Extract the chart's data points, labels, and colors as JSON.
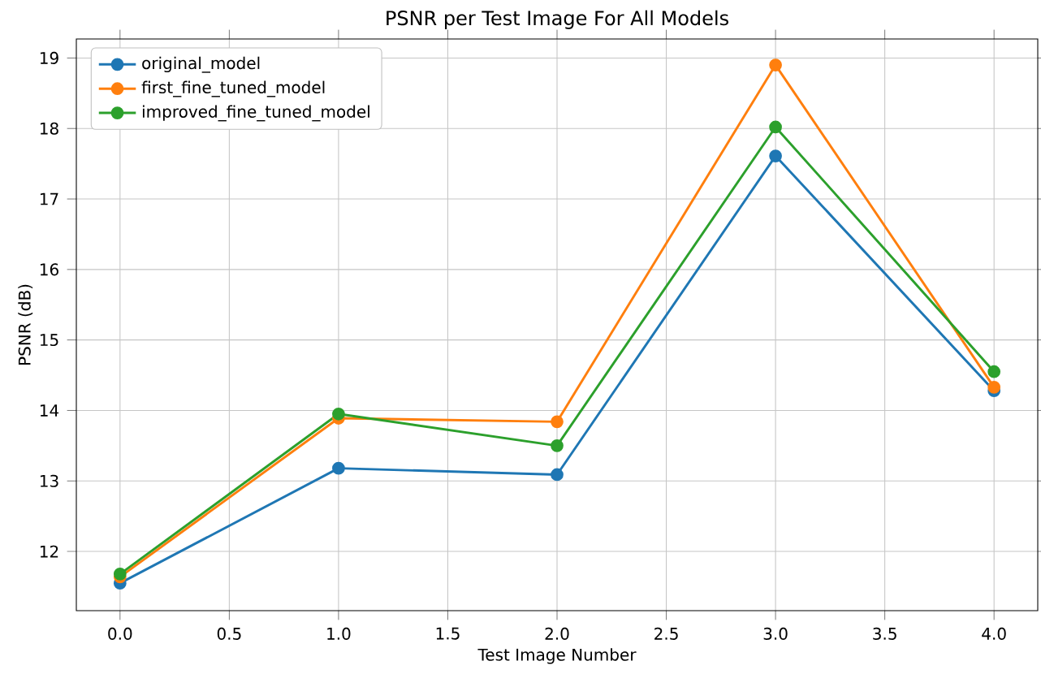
{
  "chart_data": {
    "type": "line",
    "title": "PSNR per Test Image For All Models",
    "xlabel": "Test Image Number",
    "ylabel": "PSNR (dB)",
    "x": [
      0,
      1,
      2,
      3,
      4
    ],
    "series": [
      {
        "name": "original_model",
        "color": "#1f77b4",
        "values": [
          11.55,
          13.18,
          13.09,
          17.61,
          14.28
        ]
      },
      {
        "name": "first_fine_tuned_model",
        "color": "#ff7f0e",
        "values": [
          11.64,
          13.89,
          13.84,
          18.9,
          14.33
        ]
      },
      {
        "name": "improved_fine_tuned_model",
        "color": "#2ca02c",
        "values": [
          11.68,
          13.95,
          13.5,
          18.02,
          14.55
        ]
      }
    ],
    "xlim": [
      -0.2,
      4.2
    ],
    "ylim": [
      11.16,
      19.27
    ],
    "xticks": [
      {
        "value": 0,
        "label": "0.0"
      },
      {
        "value": 0.5,
        "label": "0.5"
      },
      {
        "value": 1,
        "label": "1.0"
      },
      {
        "value": 1.5,
        "label": "1.5"
      },
      {
        "value": 2,
        "label": "2.0"
      },
      {
        "value": 2.5,
        "label": "2.5"
      },
      {
        "value": 3,
        "label": "3.0"
      },
      {
        "value": 3.5,
        "label": "3.5"
      },
      {
        "value": 4,
        "label": "4.0"
      }
    ],
    "yticks": [
      12,
      13,
      14,
      15,
      16,
      17,
      18,
      19
    ],
    "grid": true,
    "legend": "top left",
    "marker": "circle",
    "line_style": "solid"
  }
}
